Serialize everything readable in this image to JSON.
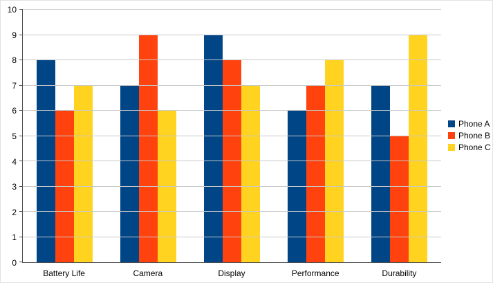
{
  "chart_data": {
    "type": "bar",
    "title": "",
    "xlabel": "",
    "ylabel": "",
    "categories": [
      "Battery Life",
      "Camera",
      "Display",
      "Performance",
      "Durability"
    ],
    "series": [
      {
        "name": "Phone A",
        "color": "#004586",
        "values": [
          8,
          7,
          9,
          6,
          7
        ]
      },
      {
        "name": "Phone B",
        "color": "#FF420E",
        "values": [
          6,
          9,
          8,
          7,
          5
        ]
      },
      {
        "name": "Phone C",
        "color": "#FFD320",
        "values": [
          7,
          6,
          7,
          8,
          9
        ]
      }
    ],
    "ylim": [
      0,
      10
    ],
    "ytick_step": 1,
    "grid": true,
    "legend_position": "right"
  }
}
